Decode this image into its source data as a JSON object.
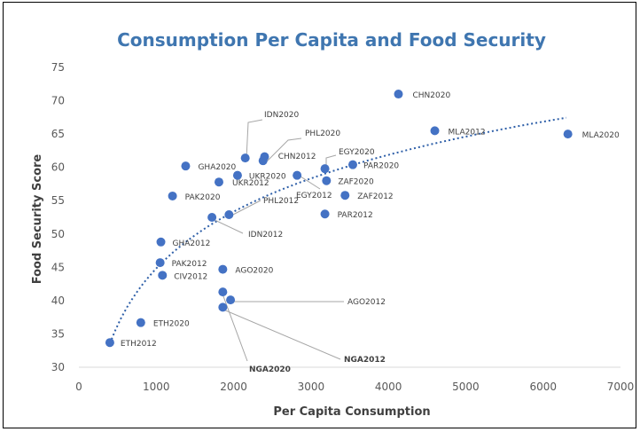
{
  "chart_data": {
    "type": "scatter",
    "title": "Consumption Per Capita and Food Security",
    "xlabel": "Per Capita Consumption",
    "ylabel": "Food Security Score",
    "xlim": [
      0,
      7000
    ],
    "ylim": [
      30,
      75
    ],
    "x_ticks": [
      "0",
      "1000",
      "2000",
      "3000",
      "4000",
      "5000",
      "6000",
      "7000"
    ],
    "y_ticks": [
      "30",
      "35",
      "40",
      "45",
      "50",
      "55",
      "60",
      "65",
      "70",
      "75"
    ],
    "grid": false,
    "legend": "none",
    "marker_color": "#4472c4",
    "highlight_color": "#c00000",
    "trendline": {
      "type": "logarithmic",
      "style": "dotted",
      "color": "#2e5fa8",
      "x_start": 400,
      "x_end": 6300
    },
    "points": [
      {
        "label": "ETH2012",
        "x": 400,
        "y": 33.7
      },
      {
        "label": "ETH2020",
        "x": 800,
        "y": 36.7
      },
      {
        "label": "CIV2012",
        "x": 1080,
        "y": 43.8
      },
      {
        "label": "PAK2012",
        "x": 1050,
        "y": 45.7
      },
      {
        "label": "GHA2012",
        "x": 1060,
        "y": 48.8
      },
      {
        "label": "PAK2020",
        "x": 1210,
        "y": 55.7
      },
      {
        "label": "GHA2020",
        "x": 1380,
        "y": 60.2
      },
      {
        "label": "IDN2012",
        "x": 1720,
        "y": 52.5
      },
      {
        "label": "PHL2012",
        "x": 1940,
        "y": 52.9
      },
      {
        "label": "UKR2012",
        "x": 1810,
        "y": 57.8
      },
      {
        "label": "UKR2020",
        "x": 2050,
        "y": 58.8
      },
      {
        "label": "IDN2020",
        "x": 2150,
        "y": 61.4
      },
      {
        "label": "PHL2020",
        "x": 2400,
        "y": 61.6
      },
      {
        "label": "CHN2012",
        "x": 2380,
        "y": 61.0
      },
      {
        "label": "AGO2020",
        "x": 1860,
        "y": 44.7
      },
      {
        "label": "AGO2012",
        "x": 1960,
        "y": 40.1
      },
      {
        "label": "NGA2020",
        "x": 1860,
        "y": 41.3,
        "highlight": true
      },
      {
        "label": "NGA2012",
        "x": 1860,
        "y": 39.0,
        "highlight": true
      },
      {
        "label": "EGY2012",
        "x": 2820,
        "y": 58.8
      },
      {
        "label": "EGY2020",
        "x": 3180,
        "y": 59.8
      },
      {
        "label": "ZAF2020",
        "x": 3200,
        "y": 58.0
      },
      {
        "label": "ZAF2012",
        "x": 3440,
        "y": 55.8
      },
      {
        "label": "PAR2012",
        "x": 3180,
        "y": 53.0
      },
      {
        "label": "PAR2020",
        "x": 3540,
        "y": 60.4
      },
      {
        "label": "CHN2020",
        "x": 4130,
        "y": 71.0
      },
      {
        "label": "MLA2012",
        "x": 4600,
        "y": 65.5
      },
      {
        "label": "MLA2020",
        "x": 6320,
        "y": 65.0
      }
    ]
  }
}
